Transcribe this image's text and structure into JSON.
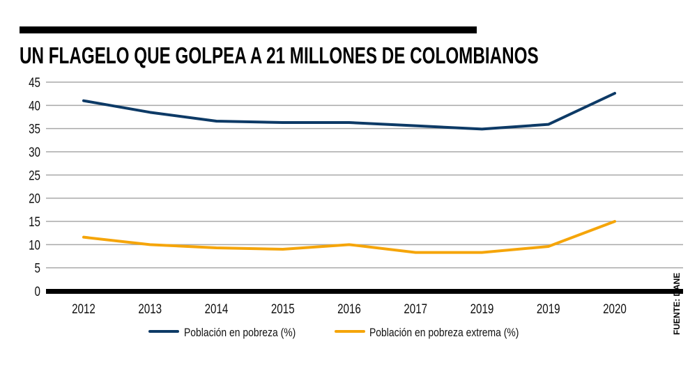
{
  "chart_data": {
    "type": "line",
    "title": "UN FLAGELO QUE GOLPEA A 21 MILLONES DE COLOMBIANOS",
    "xlabel": "",
    "ylabel": "",
    "categories": [
      "2012",
      "2013",
      "2014",
      "2015",
      "2016",
      "2017",
      "2019",
      "2019",
      "2020"
    ],
    "yticks": [
      "0",
      "5",
      "10",
      "15",
      "20",
      "25",
      "30",
      "35",
      "40",
      "45"
    ],
    "ylim": [
      0,
      45
    ],
    "grid": true,
    "legend_position": "bottom",
    "series": [
      {
        "name": "Población en pobreza (%)",
        "color": "#0d3a66",
        "values": [
          41.0,
          38.5,
          36.6,
          36.3,
          36.3,
          35.6,
          34.9,
          35.9,
          42.6
        ]
      },
      {
        "name": "Población en pobreza extrema (%)",
        "color": "#f5a50a",
        "values": [
          11.6,
          10.0,
          9.3,
          9.0,
          10.0,
          8.3,
          8.3,
          9.6,
          15.0
        ]
      }
    ],
    "source": "FUENTE: DANE"
  }
}
